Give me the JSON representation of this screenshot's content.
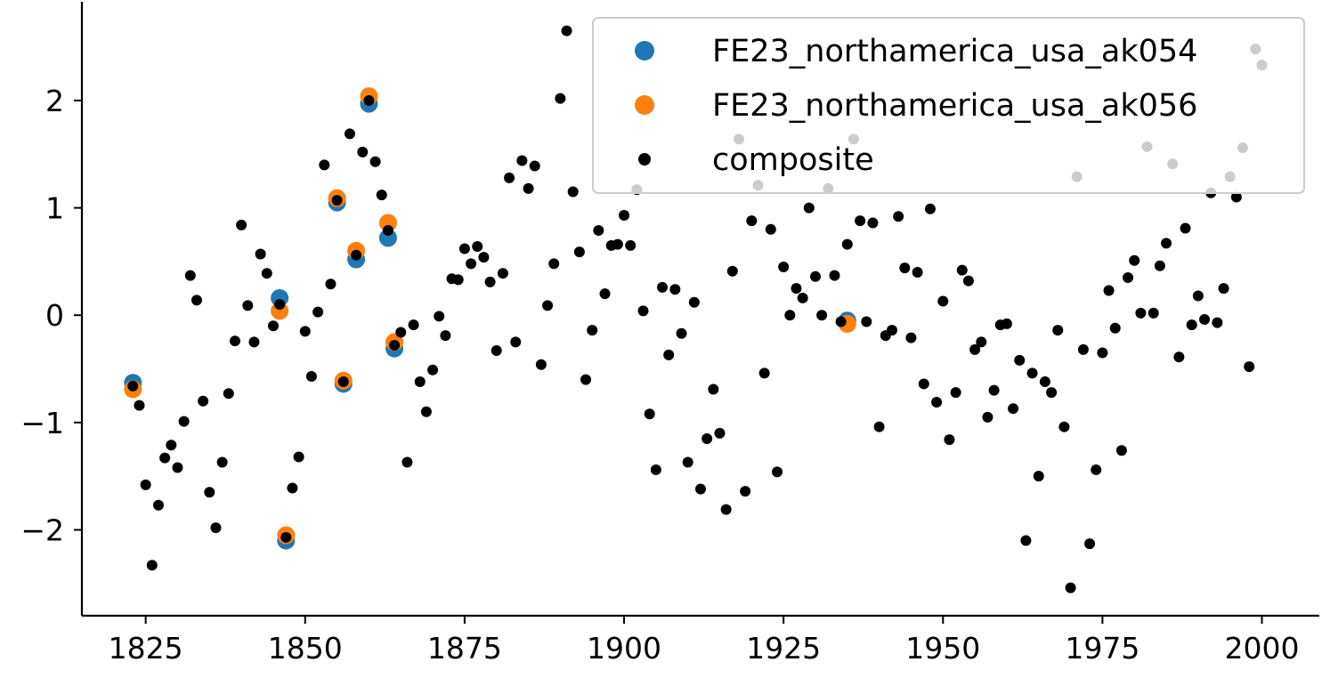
{
  "chart_data": {
    "type": "scatter",
    "title": "",
    "xlabel": "",
    "ylabel": "",
    "xlim": [
      1815,
      2009
    ],
    "ylim": [
      -2.8,
      2.92
    ],
    "xticks": [
      1825,
      1850,
      1875,
      1900,
      1925,
      1950,
      1975,
      2000
    ],
    "yticks": [
      -2,
      -1,
      0,
      1,
      2
    ],
    "xtick_labels": [
      "1825",
      "1850",
      "1875",
      "1900",
      "1925",
      "1950",
      "1975",
      "2000"
    ],
    "ytick_labels": [
      "−2",
      "−1",
      "0",
      "1",
      "2"
    ],
    "legend_position": "upper right",
    "grid": false,
    "series": [
      {
        "name": "FE23_northamerica_usa_ak054",
        "color": "#1f77b4",
        "x": [
          1823,
          1846,
          1847,
          1855,
          1856,
          1858,
          1860,
          1863,
          1864,
          1935
        ],
        "y": [
          -0.63,
          0.16,
          -2.1,
          1.05,
          -0.64,
          0.52,
          1.97,
          0.72,
          -0.31,
          -0.05
        ]
      },
      {
        "name": "FE23_northamerica_usa_ak056",
        "color": "#ff7f0e",
        "x": [
          1823,
          1846,
          1847,
          1855,
          1856,
          1858,
          1860,
          1863,
          1864,
          1935
        ],
        "y": [
          -0.69,
          0.04,
          -2.05,
          1.09,
          -0.61,
          0.6,
          2.04,
          0.86,
          -0.25,
          -0.08
        ]
      },
      {
        "name": "composite",
        "color": "#000000",
        "x": [
          1823,
          1824,
          1825,
          1826,
          1827,
          1828,
          1829,
          1830,
          1831,
          1832,
          1833,
          1834,
          1835,
          1836,
          1837,
          1838,
          1839,
          1840,
          1841,
          1842,
          1843,
          1844,
          1845,
          1846,
          1847,
          1848,
          1849,
          1850,
          1851,
          1852,
          1853,
          1854,
          1855,
          1856,
          1857,
          1858,
          1859,
          1860,
          1861,
          1862,
          1863,
          1864,
          1865,
          1866,
          1867,
          1868,
          1869,
          1870,
          1871,
          1872,
          1873,
          1874,
          1875,
          1876,
          1877,
          1878,
          1879,
          1880,
          1881,
          1882,
          1883,
          1884,
          1885,
          1886,
          1887,
          1888,
          1889,
          1890,
          1891,
          1892,
          1893,
          1894,
          1895,
          1896,
          1897,
          1898,
          1899,
          1900,
          1901,
          1902,
          1903,
          1904,
          1905,
          1906,
          1907,
          1908,
          1909,
          1910,
          1911,
          1912,
          1913,
          1914,
          1915,
          1916,
          1917,
          1918,
          1919,
          1920,
          1921,
          1922,
          1923,
          1924,
          1925,
          1926,
          1927,
          1928,
          1929,
          1930,
          1931,
          1932,
          1933,
          1934,
          1935,
          1936,
          1937,
          1938,
          1939,
          1940,
          1941,
          1942,
          1943,
          1944,
          1945,
          1946,
          1947,
          1948,
          1949,
          1950,
          1951,
          1952,
          1953,
          1954,
          1955,
          1956,
          1957,
          1958,
          1959,
          1960,
          1961,
          1962,
          1963,
          1964,
          1965,
          1966,
          1967,
          1968,
          1969,
          1970,
          1971,
          1972,
          1973,
          1974,
          1975,
          1976,
          1977,
          1978,
          1979,
          1980,
          1981,
          1982,
          1983,
          1984,
          1985,
          1986,
          1987,
          1988,
          1989,
          1990,
          1991,
          1992,
          1993,
          1994,
          1995,
          1996,
          1997,
          1998,
          1999,
          2000
        ],
        "y": [
          -0.66,
          -0.84,
          -1.58,
          -2.33,
          -1.77,
          -1.33,
          -1.21,
          -1.42,
          -0.99,
          0.37,
          0.14,
          -0.8,
          -1.65,
          -1.98,
          -1.37,
          -0.73,
          -0.24,
          0.84,
          0.09,
          -0.25,
          0.57,
          0.39,
          -0.1,
          0.1,
          -2.07,
          -1.61,
          -1.32,
          -0.15,
          -0.57,
          0.03,
          1.4,
          0.29,
          1.07,
          -0.62,
          1.69,
          0.56,
          1.52,
          2.0,
          1.43,
          1.12,
          0.79,
          -0.28,
          -0.16,
          -1.37,
          -0.09,
          -0.62,
          -0.9,
          -0.51,
          -0.01,
          -0.19,
          0.34,
          0.33,
          0.62,
          0.48,
          0.64,
          0.54,
          0.31,
          -0.33,
          0.39,
          1.28,
          -0.25,
          1.44,
          1.18,
          1.39,
          -0.46,
          0.09,
          0.48,
          2.02,
          2.65,
          1.15,
          0.59,
          -0.6,
          -0.14,
          0.79,
          0.2,
          0.65,
          0.66,
          0.93,
          0.65,
          1.17,
          0.04,
          -0.92,
          -1.44,
          0.26,
          -0.37,
          0.24,
          -0.17,
          -1.37,
          0.12,
          -1.62,
          -1.15,
          -0.69,
          -1.1,
          -1.81,
          0.41,
          1.64,
          -1.64,
          0.88,
          1.21,
          -0.54,
          0.8,
          -1.46,
          0.45,
          0.0,
          0.25,
          0.16,
          1.0,
          0.36,
          0.0,
          1.18,
          0.37,
          -0.06,
          0.66,
          1.64,
          0.88,
          -0.06,
          0.86,
          -1.04,
          -0.19,
          -0.14,
          0.92,
          0.44,
          -0.21,
          0.4,
          -0.64,
          0.99,
          -0.81,
          0.13,
          -1.16,
          -0.72,
          0.42,
          0.32,
          -0.32,
          -0.25,
          -0.95,
          -0.7,
          -0.09,
          -0.08,
          -0.87,
          -0.42,
          -2.1,
          -0.54,
          -1.5,
          -0.62,
          -0.72,
          -0.14,
          -1.04,
          -2.54,
          1.29,
          -0.32,
          -2.13,
          -1.44,
          -0.35,
          0.23,
          -0.12,
          -1.26,
          0.35,
          0.51,
          0.02,
          1.57,
          0.02,
          0.46,
          0.67,
          1.41,
          -0.39,
          0.81,
          -0.09,
          0.18,
          -0.04,
          1.14,
          -0.07,
          0.25,
          1.29,
          1.1,
          1.56,
          -0.48,
          2.48,
          2.33
        ]
      }
    ]
  }
}
